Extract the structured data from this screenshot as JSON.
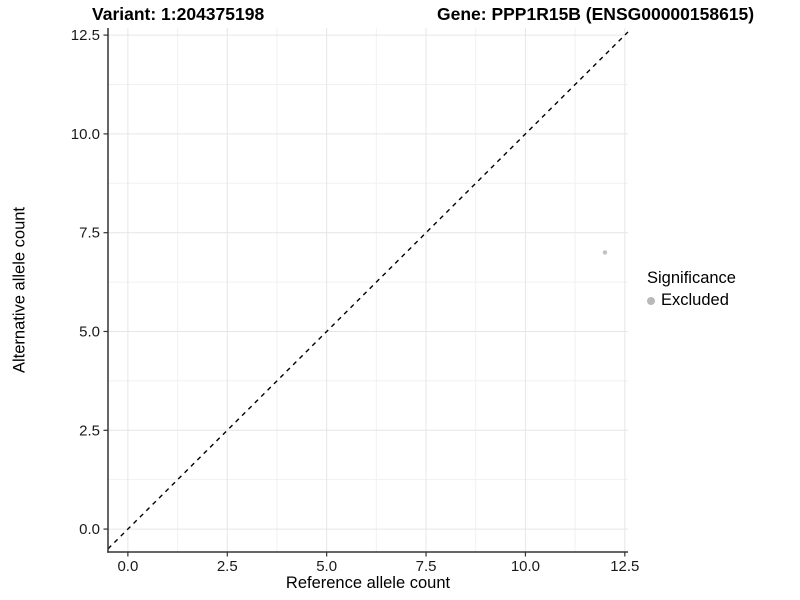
{
  "header": {
    "variant_title": "Variant: 1:204375198",
    "gene_title": "Gene: PPP1R15B (ENSG00000158615)"
  },
  "axes": {
    "x_label": "Reference allele count",
    "y_label": "Alternative allele count"
  },
  "legend": {
    "title": "Significance",
    "items": [
      {
        "label": "Excluded",
        "color": "#b9b9b9"
      }
    ]
  },
  "chart_data": {
    "type": "scatter",
    "title": "Variant: 1:204375198   Gene: PPP1R15B (ENSG00000158615)",
    "xlabel": "Reference allele count",
    "ylabel": "Alternative allele count",
    "xlim": [
      -0.5,
      12.58
    ],
    "ylim": [
      -0.58,
      12.68
    ],
    "x_ticks": [
      0,
      2.5,
      5,
      7.5,
      10,
      12.5
    ],
    "y_ticks": [
      0,
      2.5,
      5,
      7.5,
      10,
      12.5
    ],
    "x_minor_ticks": [
      1.25,
      3.75,
      6.25,
      8.75,
      11.25
    ],
    "y_minor_ticks": [
      1.25,
      3.75,
      6.25,
      8.75,
      11.25
    ],
    "grid": true,
    "legend_position": "right",
    "identity_line": {
      "equation": "y = x",
      "style": "dashed",
      "color": "#000000"
    },
    "series": [
      {
        "name": "Excluded",
        "color": "#c1c1c1",
        "marker": "circle",
        "points": [
          {
            "x": 12,
            "y": 7
          }
        ]
      }
    ]
  },
  "style": {
    "axis_color": "#333333",
    "tick_color": "#333333",
    "grid_major_color": "#e6e6e6",
    "grid_minor_color": "#f1f1f1",
    "tick_label_color": "#1a1a1a"
  }
}
